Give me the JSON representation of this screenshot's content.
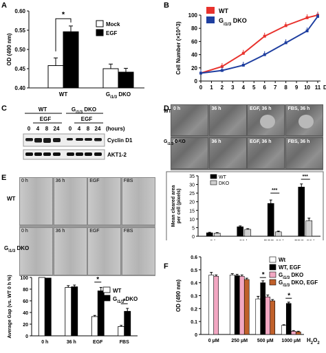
{
  "panels": {
    "A": {
      "label": "A",
      "chart_data": {
        "type": "bar",
        "ylabel": "OD (490 nm)",
        "ylim": [
          0.4,
          0.6
        ],
        "yticks": [
          "0.40",
          "0.45",
          "0.50",
          "0.55",
          "0.60"
        ],
        "categories": [
          "WT",
          "G i1/3 DKO"
        ],
        "series": [
          {
            "name": "Mock",
            "values": [
              0.458,
              0.45
            ],
            "errors": [
              0.02,
              0.012
            ],
            "color": "#ffffff"
          },
          {
            "name": "EGF",
            "values": [
              0.546,
              0.441
            ],
            "errors": [
              0.015,
              0.01
            ],
            "color": "#000000"
          }
        ],
        "annotation": "*"
      }
    },
    "B": {
      "label": "B",
      "chart_data": {
        "type": "line",
        "ylabel": "Cell Number (×10^3)",
        "xlabel": "Day",
        "ylim": [
          0,
          100
        ],
        "yticks": [
          "0",
          "20",
          "40",
          "60",
          "80",
          "100"
        ],
        "x": [
          0,
          1,
          2,
          3,
          4,
          5,
          6,
          7,
          8,
          9,
          10,
          11
        ],
        "series": [
          {
            "name": "WT",
            "color": "#e8322d",
            "x": [
              0,
              2,
              4,
              6,
              8,
              10,
              11
            ],
            "values": [
              12,
              22,
              42,
              68,
              84,
              96,
              100
            ]
          },
          {
            "name": "G i1/3 DKO",
            "color": "#1f3fa0",
            "x": [
              0,
              2,
              4,
              6,
              8,
              10,
              11
            ],
            "values": [
              12,
              16,
              24,
              40,
              58,
              76,
              98
            ]
          }
        ]
      }
    },
    "C": {
      "label": "C",
      "wt": "WT",
      "dko": "G i1/3 DKO",
      "egf": "EGF",
      "hours_label": "(hours)",
      "times": [
        "0",
        "4",
        "8",
        "24",
        "0",
        "4",
        "8",
        "24"
      ],
      "bands": [
        "Cyclin D1",
        "AKT1-2"
      ]
    },
    "D": {
      "label": "D",
      "row_wt": "WT",
      "row_dko": "G i1/3 DKO",
      "tiles": [
        "0 h",
        "36 h",
        "EGF, 36 h",
        "FBS, 36 h"
      ],
      "chart_data": {
        "type": "bar",
        "ylabel": "Mean cleared area per cell (pixels)",
        "ylim": [
          0,
          35
        ],
        "yticks": [
          "0",
          "5",
          "10",
          "15",
          "20",
          "25",
          "30",
          "35"
        ],
        "categories": [
          "0 h",
          "36 h",
          "EGF, 36 h",
          "FBS, 36 h"
        ],
        "series": [
          {
            "name": "WT",
            "color": "#000000",
            "values": [
              2.0,
              5.5,
              19.0,
              28.5
            ],
            "errors": [
              0.3,
              0.5,
              2.0,
              1.8
            ]
          },
          {
            "name": "DKO",
            "color": "#d0d0d0",
            "values": [
              1.8,
              4.0,
              2.5,
              9.0
            ],
            "errors": [
              0.3,
              0.4,
              0.5,
              1.5
            ]
          }
        ],
        "annotations": [
          "***",
          "***"
        ]
      }
    },
    "E": {
      "label": "E",
      "row_wt": "WT",
      "row_dko": "G i1/3 DKO",
      "tiles": [
        "0 h",
        "36 h",
        "EGF",
        "FBS"
      ],
      "chart_data": {
        "type": "bar",
        "ylabel": "Average Gap (vs. WT 0 h %)",
        "ylim": [
          0,
          100
        ],
        "yticks": [
          "0",
          "20",
          "40",
          "60",
          "80",
          "100"
        ],
        "categories": [
          "0 h",
          "36 h",
          "EGF",
          "FBS"
        ],
        "series": [
          {
            "name": "WT",
            "color": "#ffffff",
            "values": [
              100,
              83,
              33,
              16
            ],
            "errors": [
              0,
              3,
              2,
              2
            ]
          },
          {
            "name": "G i1/3 DKO",
            "color": "#000000",
            "values": [
              99,
              84,
              77,
              42
            ],
            "errors": [
              0,
              3,
              6,
              5
            ]
          }
        ],
        "annotations": [
          "*",
          "*"
        ]
      }
    },
    "F": {
      "label": "F",
      "xlabel_suffix": "H2O2",
      "chart_data": {
        "type": "bar",
        "ylabel": "OD (490 nm)",
        "ylim": [
          0,
          0.6
        ],
        "yticks": [
          "0",
          "0.1",
          "0.2",
          "0.3",
          "0.4",
          "0.5",
          "0.6"
        ],
        "categories": [
          "0 μM",
          "250 μM",
          "500 μM",
          "1000 μM"
        ],
        "series": [
          {
            "name": "Wt",
            "color": "#ffffff",
            "values": [
              0.46,
              0.46,
              0.275,
              0.07
            ],
            "errors": [
              0.02,
              0.01,
              0.02,
              0.005
            ]
          },
          {
            "name": "WT, EGF",
            "color": "#000000",
            "values": [
              null,
              0.455,
              0.4,
              0.24
            ],
            "errors": [
              null,
              0.01,
              0.015,
              0.01
            ]
          },
          {
            "name": "G i1/3 DKO",
            "color": "#f2a7c2",
            "values": [
              0.45,
              0.45,
              0.29,
              0.025
            ],
            "errors": [
              0.01,
              0.01,
              0.015,
              0.005
            ]
          },
          {
            "name": "G i1/3 DKO, EGF",
            "color": "#c0602a",
            "values": [
              null,
              0.425,
              0.26,
              0.02
            ],
            "errors": [
              null,
              0.01,
              0.01,
              0.005
            ]
          }
        ],
        "annotations": [
          "*",
          "*"
        ]
      }
    }
  }
}
